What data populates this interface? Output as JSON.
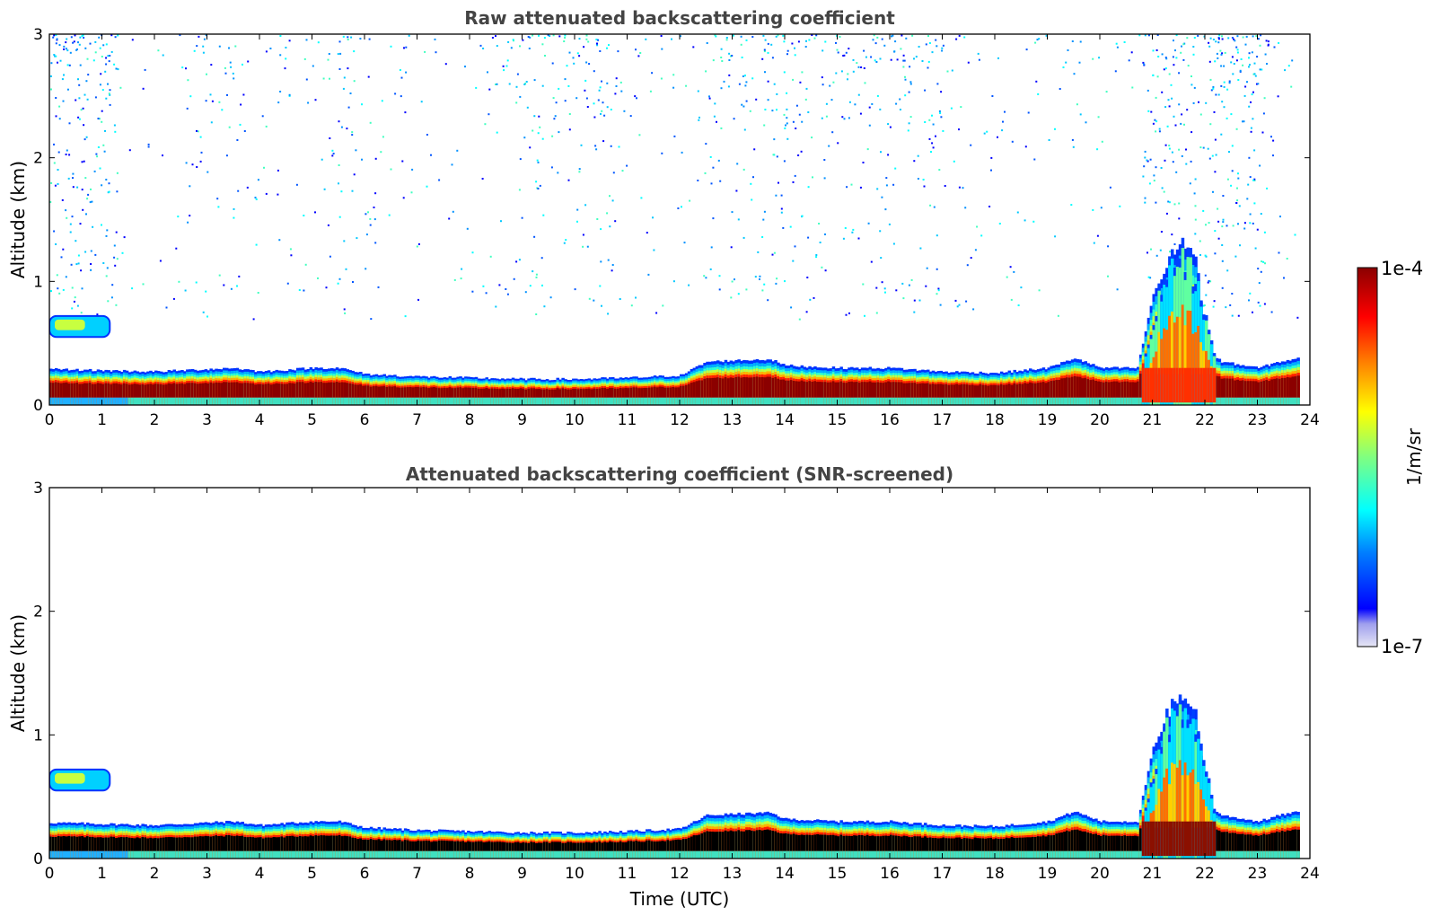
{
  "chart_data": [
    {
      "type": "heatmap",
      "title": "Raw attenuated backscattering coefficient",
      "xlabel": "",
      "ylabel": "Altitude (km)",
      "xlim": [
        0,
        24
      ],
      "ylim": [
        0,
        3
      ],
      "x_ticks": [
        "0",
        "1",
        "2",
        "3",
        "4",
        "5",
        "6",
        "7",
        "8",
        "9",
        "10",
        "11",
        "12",
        "13",
        "14",
        "15",
        "16",
        "17",
        "18",
        "19",
        "20",
        "21",
        "22",
        "23",
        "24"
      ],
      "y_ticks": [
        "0",
        "1",
        "2",
        "3"
      ],
      "noise_density": 1.0,
      "layer_core_color": "#8b0000",
      "boundary_layer_top_km": [
        [
          0,
          0.29
        ],
        [
          1,
          0.28
        ],
        [
          2,
          0.27
        ],
        [
          3,
          0.29
        ],
        [
          3.5,
          0.3
        ],
        [
          4,
          0.27
        ],
        [
          5,
          0.3
        ],
        [
          5.5,
          0.3
        ],
        [
          6,
          0.25
        ],
        [
          7,
          0.23
        ],
        [
          8,
          0.22
        ],
        [
          9,
          0.21
        ],
        [
          10,
          0.21
        ],
        [
          11,
          0.22
        ],
        [
          12,
          0.24
        ],
        [
          12.5,
          0.35
        ],
        [
          13,
          0.36
        ],
        [
          13.7,
          0.37
        ],
        [
          14,
          0.32
        ],
        [
          15,
          0.3
        ],
        [
          16,
          0.3
        ],
        [
          17,
          0.27
        ],
        [
          18,
          0.26
        ],
        [
          19,
          0.3
        ],
        [
          19.5,
          0.38
        ],
        [
          20,
          0.3
        ],
        [
          20.7,
          0.3
        ],
        [
          21,
          0.9
        ],
        [
          21.5,
          1.3
        ],
        [
          21.8,
          1.2
        ],
        [
          22,
          0.45
        ],
        [
          22.3,
          0.35
        ],
        [
          23,
          0.3
        ],
        [
          23.4,
          0.35
        ],
        [
          23.8,
          0.38
        ]
      ],
      "features": [
        {
          "name": "residual layer",
          "x_range": [
            0,
            1.15
          ],
          "y_range": [
            0.55,
            0.72
          ]
        },
        {
          "name": "convective plume",
          "x_range": [
            20.8,
            22.2
          ],
          "y_range": [
            0.3,
            1.4
          ]
        }
      ]
    },
    {
      "type": "heatmap",
      "title": "Attenuated backscattering coefficient (SNR-screened)",
      "xlabel": "Time (UTC)",
      "ylabel": "Altitude (km)",
      "xlim": [
        0,
        24
      ],
      "ylim": [
        0,
        3
      ],
      "x_ticks": [
        "0",
        "1",
        "2",
        "3",
        "4",
        "5",
        "6",
        "7",
        "8",
        "9",
        "10",
        "11",
        "12",
        "13",
        "14",
        "15",
        "16",
        "17",
        "18",
        "19",
        "20",
        "21",
        "22",
        "23",
        "24"
      ],
      "y_ticks": [
        "0",
        "1",
        "2",
        "3"
      ],
      "noise_density": 0.0,
      "layer_core_color": "#000000",
      "boundary_layer_top_km": [
        [
          0,
          0.29
        ],
        [
          1,
          0.28
        ],
        [
          2,
          0.27
        ],
        [
          3,
          0.29
        ],
        [
          3.5,
          0.3
        ],
        [
          4,
          0.27
        ],
        [
          5,
          0.3
        ],
        [
          5.5,
          0.3
        ],
        [
          6,
          0.25
        ],
        [
          7,
          0.23
        ],
        [
          8,
          0.22
        ],
        [
          9,
          0.21
        ],
        [
          10,
          0.21
        ],
        [
          11,
          0.22
        ],
        [
          12,
          0.24
        ],
        [
          12.5,
          0.35
        ],
        [
          13,
          0.36
        ],
        [
          13.7,
          0.37
        ],
        [
          14,
          0.32
        ],
        [
          15,
          0.3
        ],
        [
          16,
          0.3
        ],
        [
          17,
          0.27
        ],
        [
          18,
          0.26
        ],
        [
          19,
          0.3
        ],
        [
          19.5,
          0.38
        ],
        [
          20,
          0.3
        ],
        [
          20.7,
          0.3
        ],
        [
          21,
          0.9
        ],
        [
          21.5,
          1.3
        ],
        [
          21.8,
          1.2
        ],
        [
          22,
          0.45
        ],
        [
          22.3,
          0.35
        ],
        [
          23,
          0.3
        ],
        [
          23.4,
          0.35
        ],
        [
          23.8,
          0.38
        ]
      ],
      "features": [
        {
          "name": "residual layer",
          "x_range": [
            0,
            1.15
          ],
          "y_range": [
            0.55,
            0.72
          ]
        },
        {
          "name": "convective plume",
          "x_range": [
            20.8,
            22.2
          ],
          "y_range": [
            0.3,
            1.4
          ]
        }
      ]
    }
  ],
  "colorbar": {
    "label": "1/m/sr",
    "max_label": "1e-4",
    "min_label": "1e-7",
    "scale": "log",
    "colormap": "jet",
    "colors": [
      "#e6e6f5",
      "#7f7fff",
      "#0000ff",
      "#0080ff",
      "#00ffff",
      "#80ff80",
      "#ffff00",
      "#ff8000",
      "#ff0000",
      "#8b0000"
    ]
  }
}
